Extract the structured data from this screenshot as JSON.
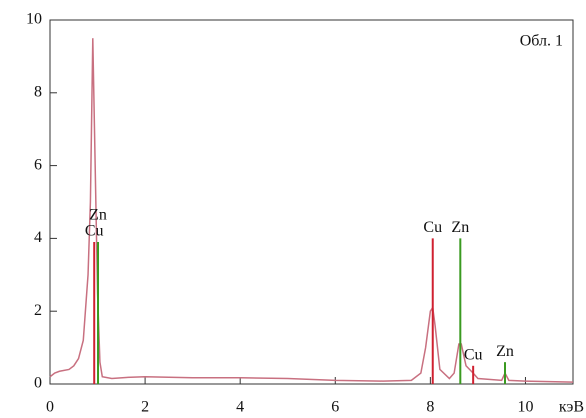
{
  "chart_data": {
    "type": "line",
    "annotation": "Обл. 1",
    "x_label": "кэВ",
    "color": "#c87080",
    "x": [
      0,
      0.1,
      0.2,
      0.4,
      0.5,
      0.6,
      0.7,
      0.8,
      0.85,
      0.9,
      0.95,
      1.0,
      1.05,
      1.1,
      1.3,
      1.6,
      2,
      3,
      4,
      5,
      6,
      7,
      7.6,
      7.8,
      7.9,
      8.0,
      8.05,
      8.1,
      8.2,
      8.4,
      8.5,
      8.6,
      8.65,
      8.75,
      8.9,
      9.0,
      9.5,
      9.57,
      9.65,
      10,
      11
    ],
    "values": [
      0.2,
      0.3,
      0.35,
      0.4,
      0.5,
      0.7,
      1.2,
      3.0,
      5.0,
      9.5,
      6.0,
      2.5,
      0.6,
      0.2,
      0.15,
      0.18,
      0.2,
      0.17,
      0.17,
      0.15,
      0.1,
      0.08,
      0.1,
      0.3,
      1.0,
      2.0,
      2.1,
      1.6,
      0.4,
      0.15,
      0.3,
      1.1,
      1.1,
      0.5,
      0.3,
      0.15,
      0.1,
      0.3,
      0.1,
      0.08,
      0.05
    ],
    "peaks": [
      {
        "element": "Cu",
        "x": 0.93,
        "height": 3.9,
        "color": "#d02030"
      },
      {
        "element": "Zn",
        "x": 1.01,
        "height": 3.9,
        "color": "#3a9a20"
      },
      {
        "element": "Cu",
        "x": 8.05,
        "height": 4.0,
        "color": "#d02030"
      },
      {
        "element": "Zn",
        "x": 8.63,
        "height": 4.0,
        "color": "#3a9a20"
      },
      {
        "element": "Cu",
        "x": 8.9,
        "height": 0.5,
        "color": "#d02030"
      },
      {
        "element": "Zn",
        "x": 9.57,
        "height": 0.6,
        "color": "#3a9a20"
      }
    ],
    "xlim": [
      0,
      11
    ],
    "xticks": [
      0,
      2,
      4,
      6,
      8,
      10
    ],
    "ylim": [
      0,
      10
    ],
    "yticks": [
      0,
      2,
      4,
      6,
      8,
      10
    ]
  }
}
